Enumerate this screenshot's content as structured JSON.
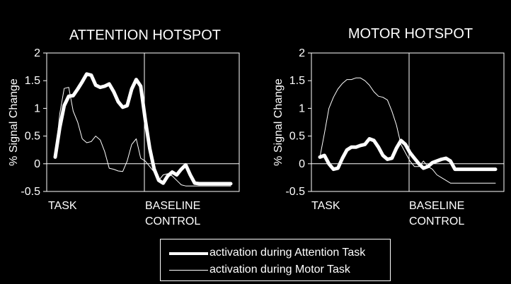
{
  "chart_data": [
    {
      "type": "line",
      "title": "ATTENTION HOTSPOT",
      "ylabel": "% Signal Change",
      "xlabel": "",
      "ylim": [
        -0.5,
        2
      ],
      "yticks": [
        "2",
        "1.5",
        "1",
        "0.5",
        "0",
        "-0.5"
      ],
      "yticks_values": [
        2,
        1.5,
        1,
        0.5,
        0,
        -0.5
      ],
      "x_categories": [
        "TASK",
        "BASELINE\nCONTROL"
      ],
      "x_category_labels": [
        [
          "TASK"
        ],
        [
          "BASELINE",
          "CONTROL"
        ]
      ],
      "x": [
        0,
        1,
        2,
        3,
        4,
        5,
        6,
        7,
        8,
        9,
        10,
        11,
        12,
        13,
        14,
        15,
        16,
        17,
        18,
        19,
        20,
        21,
        22,
        23,
        24,
        25,
        26,
        27,
        28,
        29,
        30,
        31,
        32,
        33,
        34,
        35,
        36,
        37,
        38,
        39
      ],
      "series": [
        {
          "name": "activation during Attention Task",
          "style": "thick",
          "values": [
            0.12,
            0.65,
            1.05,
            1.22,
            1.23,
            1.35,
            1.48,
            1.62,
            1.6,
            1.42,
            1.38,
            1.4,
            1.44,
            1.3,
            1.12,
            1.02,
            1.05,
            1.35,
            1.52,
            1.4,
            0.8,
            0.28,
            -0.1,
            -0.3,
            -0.35,
            -0.22,
            -0.15,
            -0.2,
            -0.1,
            -0.02,
            -0.2,
            -0.35,
            -0.36,
            -0.36,
            -0.36,
            -0.36,
            -0.36,
            -0.36,
            -0.36,
            -0.36
          ]
        },
        {
          "name": "activation during Motor Task",
          "style": "thin",
          "values": [
            0.12,
            0.9,
            1.36,
            1.38,
            0.95,
            0.75,
            0.45,
            0.38,
            0.4,
            0.5,
            0.43,
            0.22,
            -0.08,
            -0.1,
            -0.13,
            -0.14,
            0.05,
            0.35,
            0.45,
            0.1,
            0.05,
            -0.05,
            -0.15,
            -0.3,
            -0.2,
            -0.18,
            -0.22,
            -0.3,
            -0.38,
            -0.4,
            -0.4,
            -0.4,
            -0.4,
            -0.4,
            -0.4,
            -0.4,
            -0.4,
            -0.4,
            -0.4,
            -0.4
          ]
        }
      ]
    },
    {
      "type": "line",
      "title": "MOTOR HOTSPOT",
      "ylabel": "% Signal Change",
      "xlabel": "",
      "ylim": [
        -0.5,
        2
      ],
      "yticks": [
        "2",
        "1.5",
        "1",
        "0.5",
        "0",
        "-0.5"
      ],
      "yticks_values": [
        2,
        1.5,
        1,
        0.5,
        0,
        -0.5
      ],
      "x_categories": [
        "TASK",
        "BASELINE\nCONTROL"
      ],
      "x_category_labels": [
        [
          "TASK"
        ],
        [
          "BASELINE",
          "CONTROL"
        ]
      ],
      "x": [
        0,
        1,
        2,
        3,
        4,
        5,
        6,
        7,
        8,
        9,
        10,
        11,
        12,
        13,
        14,
        15,
        16,
        17,
        18,
        19,
        20,
        21,
        22,
        23,
        24,
        25,
        26,
        27,
        28,
        29,
        30,
        31,
        32,
        33,
        34,
        35,
        36,
        37,
        38,
        39
      ],
      "series": [
        {
          "name": "activation during Attention Task",
          "style": "thick",
          "values": [
            0.12,
            0.15,
            0.0,
            -0.1,
            -0.08,
            0.1,
            0.25,
            0.3,
            0.3,
            0.33,
            0.35,
            0.45,
            0.42,
            0.3,
            0.15,
            0.08,
            0.1,
            0.28,
            0.42,
            0.35,
            0.2,
            0.1,
            0.0,
            -0.08,
            -0.05,
            0.02,
            0.05,
            0.08,
            0.1,
            0.05,
            -0.1,
            -0.1,
            -0.1,
            -0.1,
            -0.1,
            -0.1,
            -0.1,
            -0.1,
            -0.1,
            -0.1
          ]
        },
        {
          "name": "activation during Motor Task",
          "style": "thin",
          "values": [
            0.12,
            0.55,
            1.0,
            1.2,
            1.35,
            1.45,
            1.52,
            1.52,
            1.55,
            1.55,
            1.5,
            1.42,
            1.3,
            1.22,
            1.2,
            1.15,
            0.95,
            0.7,
            0.35,
            0.2,
            0.05,
            -0.05,
            -0.05,
            0.05,
            -0.05,
            -0.1,
            -0.2,
            -0.25,
            -0.3,
            -0.35,
            -0.35,
            -0.35,
            -0.35,
            -0.35,
            -0.35,
            -0.35,
            -0.35,
            -0.35,
            -0.35,
            -0.35
          ]
        }
      ]
    }
  ],
  "legend": {
    "items": [
      {
        "label": "activation during Attention Task",
        "style": "thick"
      },
      {
        "label": "activation during Motor Task",
        "style": "thin"
      }
    ]
  }
}
